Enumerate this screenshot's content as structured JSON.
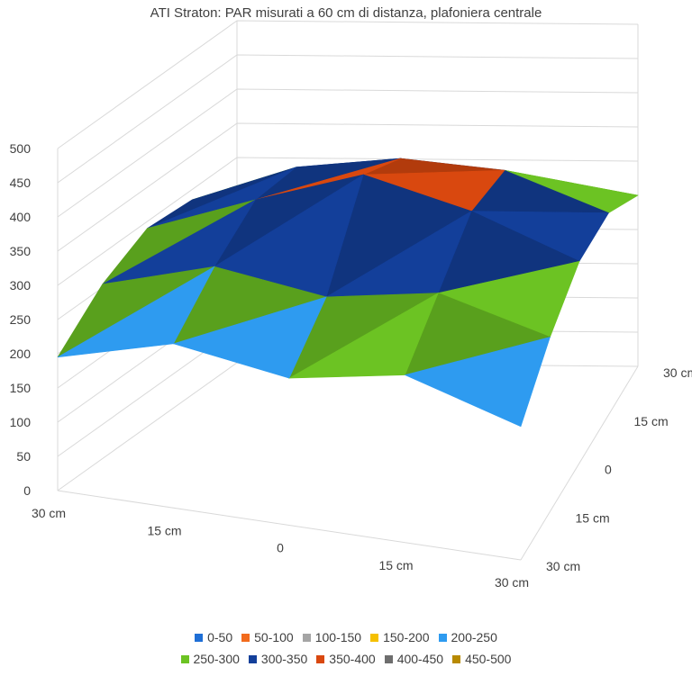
{
  "chart_data": {
    "type": "surface",
    "title": "ATI Straton: PAR misurati a 60 cm di distanza, plafoniera centrale",
    "z_ticks": [
      "0",
      "50",
      "100",
      "150",
      "200",
      "250",
      "300",
      "350",
      "400",
      "450",
      "500"
    ],
    "zlim": [
      0,
      500
    ],
    "x_ticks": [
      "30 cm",
      "15 cm",
      "0",
      "15 cm",
      "30 cm"
    ],
    "y_ticks": [
      "30 cm",
      "15 cm",
      "0",
      "15 cm",
      "30 cm"
    ],
    "values": [
      [
        195,
        240,
        215,
        245,
        195
      ],
      [
        255,
        300,
        275,
        300,
        255
      ],
      [
        290,
        345,
        395,
        355,
        295
      ],
      [
        285,
        340,
        360,
        350,
        295
      ],
      [
        250,
        270,
        285,
        275,
        250
      ]
    ],
    "legend": [
      {
        "label": "0-50",
        "color": "#1f6fd6"
      },
      {
        "label": "50-100",
        "color": "#f26b1d"
      },
      {
        "label": "100-150",
        "color": "#a5a5a5"
      },
      {
        "label": "150-200",
        "color": "#f5c000"
      },
      {
        "label": "200-250",
        "color": "#2e9bf0"
      },
      {
        "label": "250-300",
        "color": "#6cc323"
      },
      {
        "label": "300-350",
        "color": "#133f9a"
      },
      {
        "label": "350-400",
        "color": "#d9480f"
      },
      {
        "label": "400-450",
        "color": "#6e6e6e"
      },
      {
        "label": "450-500",
        "color": "#b88a00"
      }
    ],
    "bands": [
      {
        "min": 0,
        "max": 50,
        "color": "#1f6fd6"
      },
      {
        "min": 50,
        "max": 100,
        "color": "#f26b1d"
      },
      {
        "min": 100,
        "max": 150,
        "color": "#a5a5a5"
      },
      {
        "min": 150,
        "max": 200,
        "color": "#f5c000"
      },
      {
        "min": 200,
        "max": 250,
        "color": "#2e9bf0"
      },
      {
        "min": 250,
        "max": 300,
        "color": "#6cc323"
      },
      {
        "min": 300,
        "max": 350,
        "color": "#133f9a"
      },
      {
        "min": 350,
        "max": 400,
        "color": "#d9480f"
      },
      {
        "min": 400,
        "max": 450,
        "color": "#6e6e6e"
      },
      {
        "min": 450,
        "max": 500,
        "color": "#b88a00"
      }
    ],
    "grid": true,
    "legend_position": "bottom"
  }
}
